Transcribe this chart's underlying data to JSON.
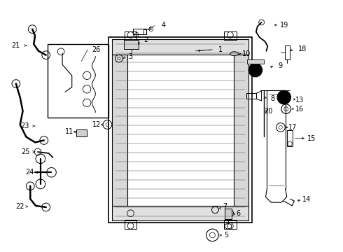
{
  "bg_color": "#ffffff",
  "line_color": "#000000",
  "fig_width": 4.9,
  "fig_height": 3.6,
  "dpi": 100
}
